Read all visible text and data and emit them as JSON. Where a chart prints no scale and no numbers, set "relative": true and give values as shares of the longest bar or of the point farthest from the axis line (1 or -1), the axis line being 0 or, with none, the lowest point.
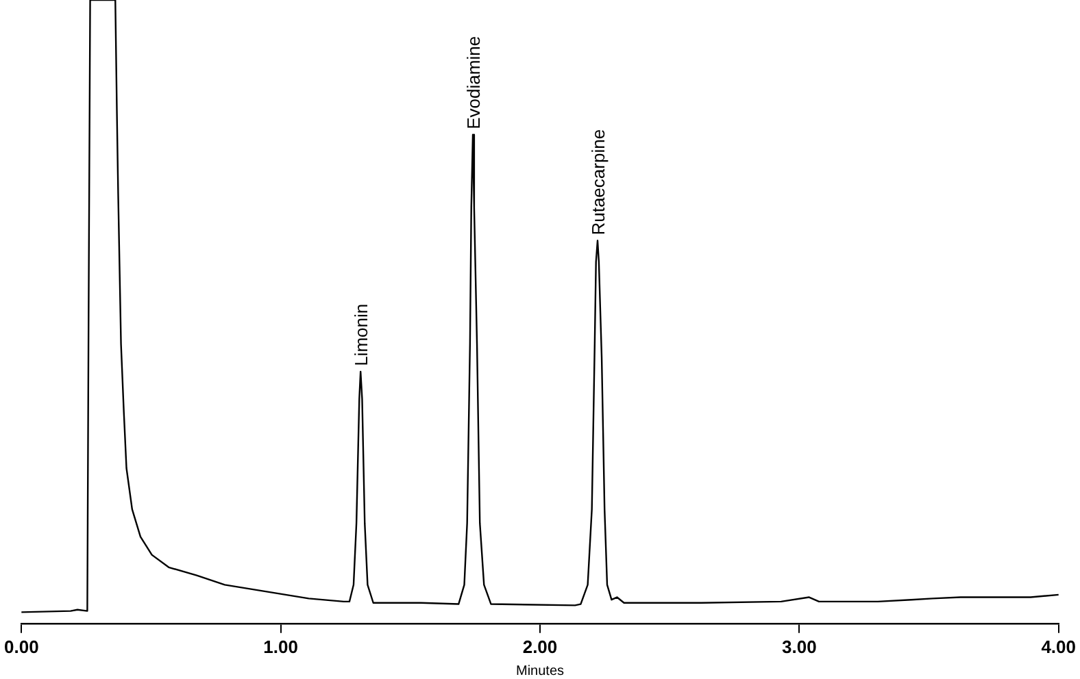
{
  "chart_data": {
    "type": "line",
    "relative": true,
    "xlabel": "Minutes",
    "xlim": [
      0,
      4
    ],
    "xticks": [
      {
        "value": 0,
        "label": "0.00"
      },
      {
        "value": 1,
        "label": "1.00"
      },
      {
        "value": 2,
        "label": "2.00"
      },
      {
        "value": 3,
        "label": "3.00"
      },
      {
        "value": 4,
        "label": "4.00"
      }
    ],
    "grid": false,
    "legend": false,
    "marker": "none",
    "line_style": "solid",
    "series": [
      {
        "color": "#000000",
        "x": [
          0,
          0.19,
          0.216,
          0.254,
          0.259,
          0.265,
          0.362,
          0.368,
          0.373,
          0.384,
          0.395,
          0.405,
          0.427,
          0.459,
          0.503,
          0.568,
          0.676,
          0.784,
          0.946,
          1.108,
          1.243,
          1.265,
          1.281,
          1.292,
          1.303,
          1.308,
          1.314,
          1.324,
          1.335,
          1.357,
          1.541,
          1.686,
          1.708,
          1.719,
          1.73,
          1.735,
          1.741,
          1.746,
          1.757,
          1.768,
          1.784,
          1.811,
          2.135,
          2.157,
          2.184,
          2.2,
          2.211,
          2.216,
          2.222,
          2.227,
          2.238,
          2.249,
          2.259,
          2.276,
          2.297,
          2.324,
          2.622,
          2.93,
          3.038,
          3.076,
          3.303,
          3.432,
          3.514,
          3.622,
          3.892,
          4.0
        ],
        "values": [
          0.018,
          0.02,
          0.022,
          0.02,
          0.497,
          1,
          1,
          0.823,
          0.69,
          0.448,
          0.338,
          0.249,
          0.183,
          0.139,
          0.11,
          0.09,
          0.077,
          0.062,
          0.051,
          0.04,
          0.035,
          0.035,
          0.062,
          0.161,
          0.36,
          0.404,
          0.36,
          0.161,
          0.062,
          0.033,
          0.033,
          0.031,
          0.062,
          0.161,
          0.448,
          0.667,
          0.784,
          0.667,
          0.448,
          0.161,
          0.062,
          0.031,
          0.029,
          0.031,
          0.062,
          0.183,
          0.448,
          0.58,
          0.614,
          0.58,
          0.426,
          0.183,
          0.062,
          0.038,
          0.042,
          0.033,
          0.033,
          0.035,
          0.042,
          0.035,
          0.035,
          0.038,
          0.04,
          0.042,
          0.042,
          0.046
        ]
      }
    ],
    "annotations": [
      {
        "text": "Limonin",
        "x": 1.308,
        "y": 0.404
      },
      {
        "text": "Evodiamine",
        "x": 1.741,
        "y": 0.784
      },
      {
        "text": "Rutaecarpine",
        "x": 2.222,
        "y": 0.614
      }
    ]
  }
}
